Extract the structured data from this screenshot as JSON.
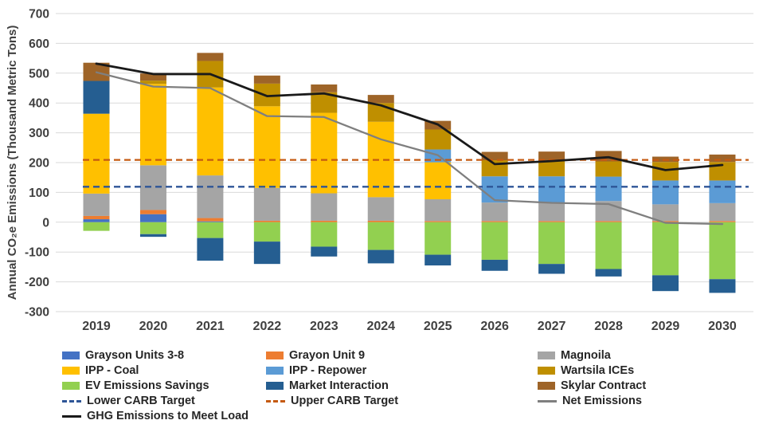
{
  "figure": {
    "background": "#FFFFFF",
    "gridline_color": "#D9D9D9",
    "axis_text_color": "#404040",
    "legend_text_color": "#262626"
  },
  "y_axis": {
    "title": "Annual CO₂e Emissions (Thousand Metric Tons)",
    "min": -300,
    "max": 700,
    "tick_step": 100,
    "tick_labels": [
      "700",
      "600",
      "500",
      "400",
      "300",
      "200",
      "100",
      "0",
      "-100",
      "-200",
      "-300"
    ]
  },
  "x_axis": {
    "categories": [
      "2019",
      "2020",
      "2021",
      "2022",
      "2023",
      "2024",
      "2025",
      "2026",
      "2027",
      "2028",
      "2029",
      "2030"
    ]
  },
  "chart_data": {
    "type": "bar",
    "subtype": "stacked-column-with-lines",
    "title": "",
    "xlabel": "",
    "ylabel": "Annual CO₂e Emissions (Thousand Metric Tons)",
    "ylim": [
      -300,
      700
    ],
    "grid": "horizontal",
    "legend_position": "bottom",
    "categories": [
      "2019",
      "2020",
      "2021",
      "2022",
      "2023",
      "2024",
      "2025",
      "2026",
      "2027",
      "2028",
      "2029",
      "2030"
    ],
    "series": [
      {
        "name": "Grayson Units 3-8",
        "color": "#4472C4",
        "values": [
          10,
          27,
          3,
          0,
          0,
          0,
          0,
          0,
          0,
          0,
          0,
          0
        ]
      },
      {
        "name": "Grayon Unit 9",
        "color": "#ED7D31",
        "values": [
          11,
          14,
          11,
          5,
          5,
          5,
          4,
          4,
          4,
          4,
          4,
          4
        ]
      },
      {
        "name": "Magnoila",
        "color": "#A5A5A5",
        "values": [
          75,
          150,
          143,
          110,
          92,
          79,
          73,
          62,
          62,
          67,
          56,
          60
        ]
      },
      {
        "name": "IPP - Coal",
        "color": "#FFC000",
        "values": [
          268,
          273,
          295,
          274,
          270,
          253,
          124,
          0,
          0,
          0,
          0,
          0
        ]
      },
      {
        "name": "IPP - Repower",
        "color": "#5B9BD5",
        "values": [
          0,
          0,
          0,
          0,
          0,
          0,
          43,
          88,
          88,
          82,
          80,
          76
        ]
      },
      {
        "name": "Wartsila ICEs",
        "color": "#BF8F00",
        "values": [
          0,
          11,
          89,
          76,
          69,
          63,
          67,
          54,
          53,
          51,
          62,
          62
        ]
      },
      {
        "name": "EV Emissions Savings",
        "color": "#92D050",
        "values": [
          -29,
          -40,
          -53,
          -65,
          -82,
          -93,
          -109,
          -126,
          -140,
          -157,
          -178,
          -191
        ]
      },
      {
        "name": "Market Interaction",
        "color": "#255E91",
        "values": [
          110,
          -9,
          -76,
          -75,
          -33,
          -45,
          -36,
          -37,
          -33,
          -25,
          -53,
          -46
        ]
      },
      {
        "name": "Skylar Contract",
        "color": "#9E6428",
        "values": [
          61,
          24,
          27,
          27,
          26,
          27,
          29,
          28,
          30,
          35,
          18,
          25
        ]
      }
    ],
    "line_series": [
      {
        "name": "Lower CARB Target",
        "color": "#2E5597",
        "style": "dashed",
        "constant_value": 119
      },
      {
        "name": "Upper CARB Target",
        "color": "#C55A11",
        "style": "dashed",
        "constant_value": 209
      },
      {
        "name": "Net Emissions",
        "color": "#7F7F7F",
        "style": "solid",
        "values": [
          503,
          455,
          450,
          356,
          353,
          278,
          225,
          74,
          65,
          61,
          -2,
          -6
        ]
      },
      {
        "name": "GHG Emissions to Meet Load",
        "color": "#1A1A1A",
        "style": "solid",
        "values": [
          532,
          497,
          497,
          423,
          432,
          392,
          328,
          195,
          205,
          218,
          175,
          192
        ]
      }
    ]
  },
  "legend": {
    "rows": [
      [
        {
          "label": "Grayson Units 3-8",
          "marker": "rect",
          "color": "#4472C4"
        },
        {
          "label": "Grayon Unit 9",
          "marker": "rect",
          "color": "#ED7D31"
        },
        {
          "label": "Magnoila",
          "marker": "rect",
          "color": "#A5A5A5"
        }
      ],
      [
        {
          "label": "IPP - Coal",
          "marker": "rect",
          "color": "#FFC000"
        },
        {
          "label": "IPP - Repower",
          "marker": "rect",
          "color": "#5B9BD5"
        },
        {
          "label": "Wartsila ICEs",
          "marker": "rect",
          "color": "#BF8F00"
        }
      ],
      [
        {
          "label": "EV Emissions Savings",
          "marker": "rect",
          "color": "#92D050"
        },
        {
          "label": "Market Interaction",
          "marker": "rect",
          "color": "#255E91"
        },
        {
          "label": "Skylar Contract",
          "marker": "rect",
          "color": "#9E6428"
        }
      ],
      [
        {
          "label": "Lower CARB Target",
          "marker": "dash",
          "color": "#2E5597"
        },
        {
          "label": "Upper CARB Target",
          "marker": "dash",
          "color": "#C55A11"
        },
        {
          "label": "Net Emissions",
          "marker": "line",
          "color": "#7F7F7F"
        }
      ],
      [
        {
          "label": "GHG Emissions to Meet Load",
          "marker": "line",
          "color": "#1A1A1A"
        }
      ]
    ]
  }
}
